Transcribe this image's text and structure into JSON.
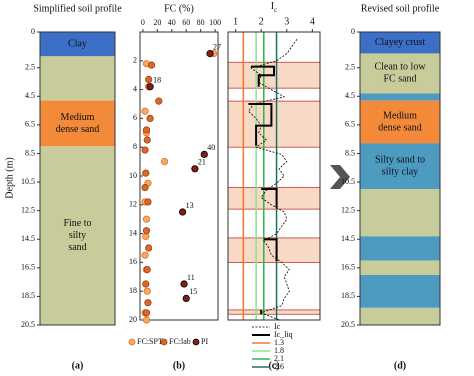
{
  "chart_data": [
    {
      "type": "strata",
      "title": "Simplified soil profile",
      "ylabel": "Depth (m)",
      "panel_label": "(a)",
      "ylim": [
        0,
        20.5
      ],
      "yticks": [
        0,
        2.5,
        4.5,
        6.5,
        8.5,
        10.5,
        12.5,
        14.5,
        16.5,
        18.5,
        20.5
      ],
      "layers": [
        {
          "top": 0,
          "bottom": 1.7,
          "color": "#3c6fc8",
          "label": [
            "Clay"
          ]
        },
        {
          "top": 1.7,
          "bottom": 4.8,
          "color": "#c8cc9b"
        },
        {
          "top": 4.8,
          "bottom": 8,
          "color": "#f28a3a",
          "label": [
            "Medium",
            "dense sand"
          ]
        },
        {
          "top": 8,
          "bottom": 20.5,
          "color": "#c8cc9b",
          "label": [
            "Fine to",
            "silty",
            "sand"
          ]
        }
      ]
    },
    {
      "type": "scatter",
      "title": "FC (%)",
      "panel_label": "(b)",
      "xlim": [
        -4,
        104
      ],
      "xticks": [
        0,
        20,
        40,
        60,
        80,
        100
      ],
      "ylim": [
        0,
        20
      ],
      "yticks": [
        2,
        4,
        6,
        8,
        10,
        12,
        14,
        16,
        18,
        20
      ],
      "series": [
        {
          "name": "FC:SPT",
          "color": "#f7a867",
          "edge": "#e07020",
          "x": [
            98,
            5,
            8,
            3,
            5,
            30,
            7,
            3,
            5,
            4,
            3,
            5,
            6,
            3,
            5
          ],
          "y": [
            1.5,
            2.2,
            3.8,
            5.5,
            7,
            9,
            10.5,
            11.8,
            13,
            14.2,
            15.5,
            16.5,
            18,
            19.5,
            20
          ]
        },
        {
          "name": "FC:lab",
          "color": "#d9692a",
          "edge": "#a04010",
          "x": [
            12,
            8,
            22,
            10,
            5,
            6,
            3,
            4,
            3,
            7,
            5,
            8,
            6,
            4,
            7,
            5
          ],
          "y": [
            2.3,
            3.3,
            4.8,
            6,
            6.8,
            7.5,
            8.2,
            9.8,
            10.8,
            11.8,
            13.8,
            15,
            16.5,
            17.5,
            18.8,
            19.5
          ]
        },
        {
          "name": "PI",
          "color": "#8b1a1a",
          "edge": "#000000",
          "x": [
            93,
            10,
            85,
            72,
            55,
            57,
            60
          ],
          "y": [
            1.5,
            3.8,
            8.5,
            9.5,
            12.5,
            17.5,
            18.5
          ],
          "pi": [
            27,
            18,
            40,
            21,
            13,
            11,
            15
          ]
        }
      ]
    },
    {
      "type": "line",
      "title": {
        "main": "I",
        "sub": "c"
      },
      "panel_label": "(c)",
      "xlim": [
        0.7,
        4.3
      ],
      "xticks": [
        1,
        2,
        3,
        4
      ],
      "ylim": [
        0,
        20
      ],
      "highlight_ranges": [
        [
          2.1,
          3.9
        ],
        [
          4.8,
          8
        ],
        [
          10.8,
          12.3
        ],
        [
          14.3,
          16
        ],
        [
          19.3,
          19.6
        ]
      ],
      "series": [
        {
          "name": "Ic",
          "color": "#000000",
          "dash": "2,1.5",
          "width": 0.8,
          "y": [
            0.5,
            1,
            1.5,
            2,
            2.5,
            3,
            3.5,
            4,
            4.5,
            5,
            5.5,
            6,
            6.5,
            7,
            7.5,
            8,
            8.5,
            9,
            9.5,
            10,
            10.5,
            11,
            11.5,
            12,
            12.5,
            13,
            13.5,
            14,
            14.5,
            15,
            15.5,
            16,
            16.5,
            17,
            17.5,
            18,
            18.5,
            19,
            19.5,
            20
          ],
          "x": [
            3.4,
            3.2,
            3.0,
            2.6,
            1.6,
            2.0,
            1.9,
            2.4,
            2.9,
            1.7,
            1.5,
            1.8,
            2.0,
            1.9,
            2.2,
            1.8,
            2.8,
            3.0,
            2.7,
            2.9,
            2.6,
            2.2,
            2.0,
            2.4,
            2.9,
            3.0,
            2.8,
            2.6,
            2.1,
            2.3,
            2.4,
            2.8,
            3.1,
            2.9,
            3.0,
            3.1,
            2.9,
            2.8,
            2.0,
            2.7
          ]
        },
        {
          "name": "Ic_liq",
          "color": "#000000",
          "width": 2,
          "y": [
            2.4,
            2.4,
            3.0,
            3.0,
            3.8,
            null,
            5.0,
            5.0,
            6.5,
            6.5,
            7.9,
            null,
            10.9,
            10.9,
            12.2,
            null,
            14.4,
            14.4,
            15.9,
            null,
            19.3,
            19.6
          ],
          "x": [
            1.6,
            2.5,
            2.5,
            1.9,
            1.9,
            null,
            1.5,
            2.4,
            2.4,
            1.8,
            1.8,
            null,
            2.0,
            2.6,
            2.6,
            null,
            2.1,
            2.6,
            2.6,
            null,
            2.0,
            2.0
          ]
        }
      ],
      "thresholds": [
        {
          "name": "1.3",
          "value": 1.3,
          "color": "#f07a2a"
        },
        {
          "name": "1.8",
          "value": 1.8,
          "color": "#8fe08f"
        },
        {
          "name": "2.1",
          "value": 2.1,
          "color": "#2db34a"
        },
        {
          "name": "2.6",
          "value": 2.6,
          "color": "#1f6f5f"
        }
      ]
    },
    {
      "type": "strata",
      "title": "Revised soil profile",
      "panel_label": "(d)",
      "ylim": [
        0,
        20.5
      ],
      "yticks": [
        0,
        2.5,
        4.5,
        6.5,
        8.5,
        10.5,
        12.5,
        14.5,
        16.5,
        18.5,
        20.5
      ],
      "layers": [
        {
          "top": 0,
          "bottom": 1.5,
          "color": "#3c6fc8",
          "label": [
            "Clayey crust"
          ]
        },
        {
          "top": 1.5,
          "bottom": 4.3,
          "color": "#c8cc9b",
          "label": [
            "Clean to low",
            "FC sand"
          ]
        },
        {
          "top": 4.3,
          "bottom": 4.8,
          "color": "#4d9bc1"
        },
        {
          "top": 4.8,
          "bottom": 7.8,
          "color": "#f28a3a",
          "label": [
            "Medium",
            "dense sand"
          ]
        },
        {
          "top": 7.8,
          "bottom": 11,
          "color": "#4d9bc1",
          "label": [
            "Silty sand to",
            "silty clay"
          ]
        },
        {
          "top": 11,
          "bottom": 14.3,
          "color": "#c8cc9b"
        },
        {
          "top": 14.3,
          "bottom": 16,
          "color": "#4d9bc1"
        },
        {
          "top": 16,
          "bottom": 17,
          "color": "#c8cc9b"
        },
        {
          "top": 17,
          "bottom": 19.3,
          "color": "#4d9bc1"
        },
        {
          "top": 19.3,
          "bottom": 20.5,
          "color": "#c8cc9b"
        }
      ]
    }
  ]
}
